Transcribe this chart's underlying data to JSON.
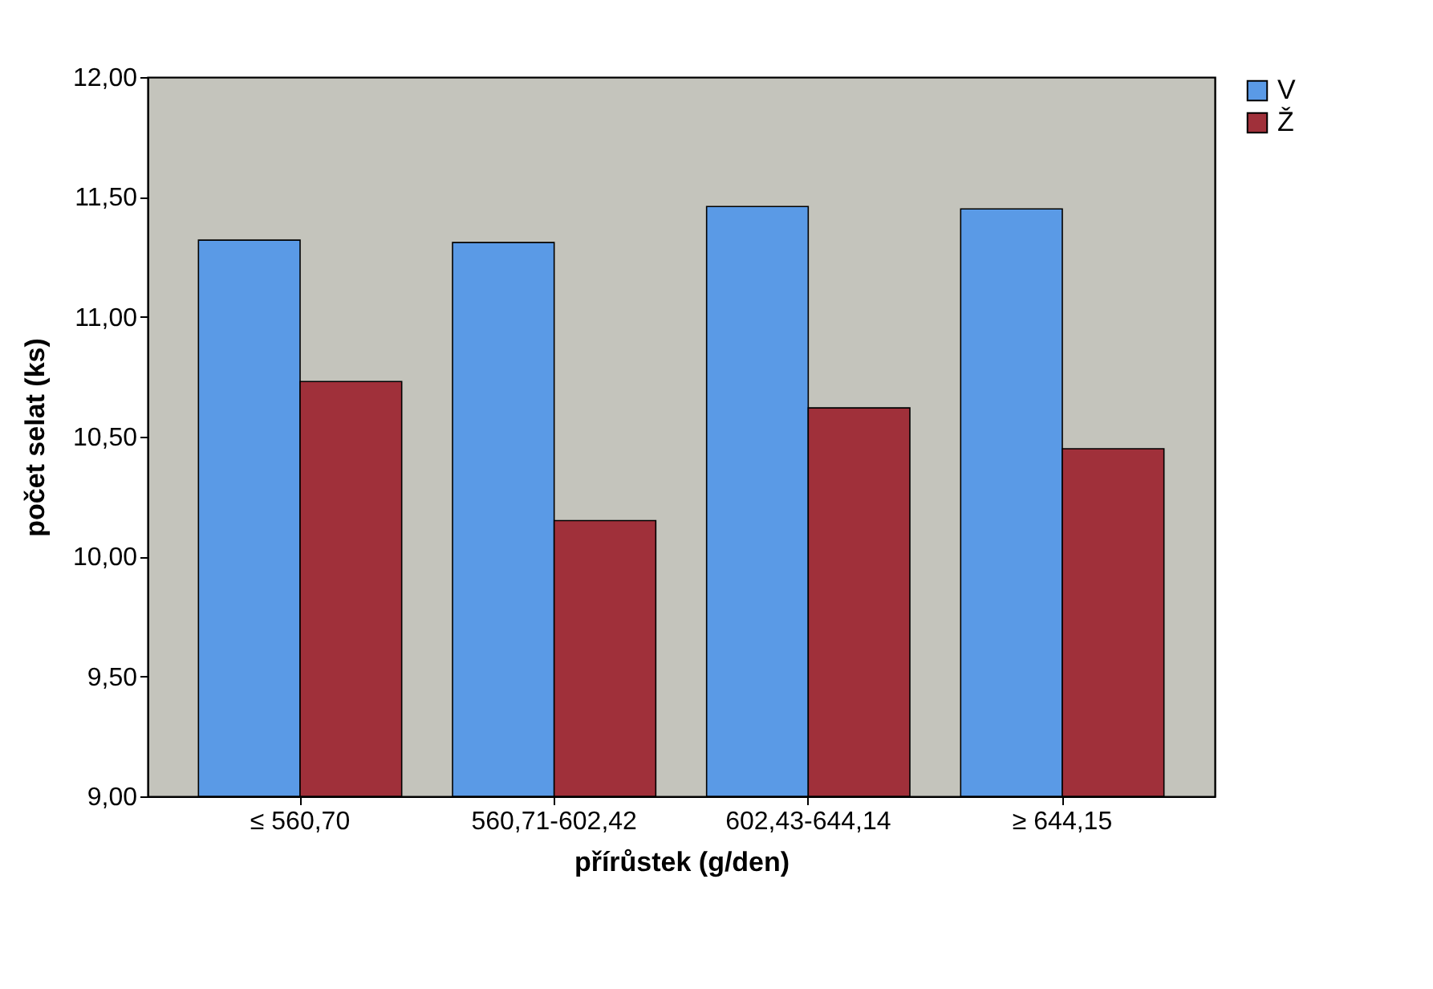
{
  "chart_data": {
    "type": "bar",
    "xlabel": "přírůstek (g/den)",
    "ylabel": "počet selat (ks)",
    "categories": [
      "≤ 560,70",
      "560,71-602,42",
      "602,43-644,14",
      "≥ 644,15"
    ],
    "series": [
      {
        "name": "V",
        "color": "#5a9ae6",
        "values": [
          11.32,
          11.31,
          11.46,
          11.45
        ]
      },
      {
        "name": "Ž",
        "color": "#a0303a",
        "values": [
          10.73,
          10.15,
          10.62,
          10.45
        ]
      }
    ],
    "ylim": [
      9,
      12
    ],
    "yticks": [
      {
        "value": 9,
        "label": "9,00"
      },
      {
        "value": 9.5,
        "label": "9,50"
      },
      {
        "value": 10,
        "label": "10,00"
      },
      {
        "value": 10.5,
        "label": "10,50"
      },
      {
        "value": 11,
        "label": "11,00"
      },
      {
        "value": 11.5,
        "label": "11,50"
      },
      {
        "value": 12,
        "label": "12,00"
      }
    ],
    "grid": false,
    "legend": "right"
  }
}
